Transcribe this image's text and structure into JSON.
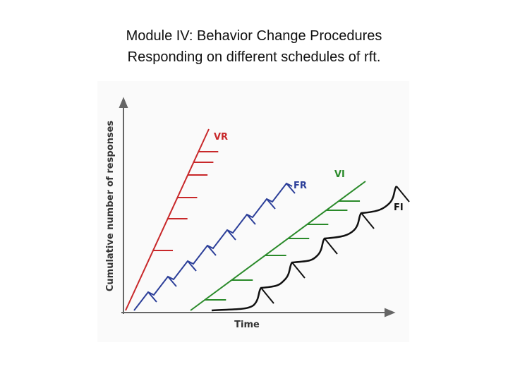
{
  "header": {
    "title": "Module IV: Behavior Change Procedures",
    "subtitle": "Responding on different schedules of rft."
  },
  "diagram": {
    "y_axis_label": "Cumulative number of responses",
    "x_axis_label": "Time",
    "curves": [
      {
        "label": "VR"
      },
      {
        "label": "FR"
      },
      {
        "label": "VI"
      },
      {
        "label": "FI"
      }
    ]
  }
}
